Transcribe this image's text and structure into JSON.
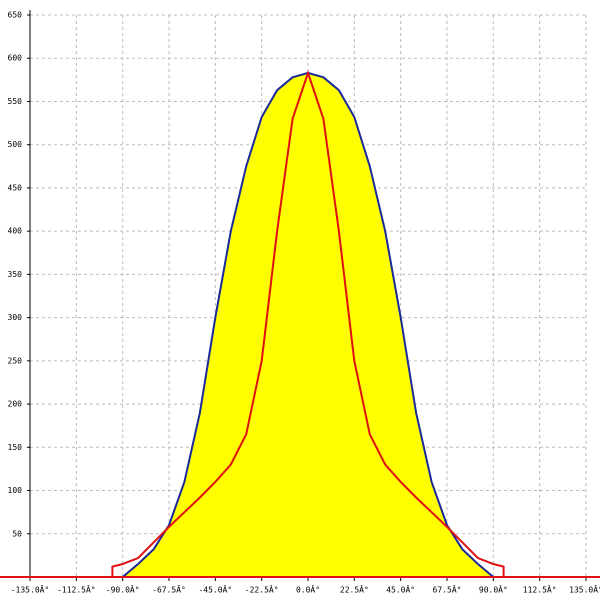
{
  "chart_data": {
    "type": "line",
    "xlim": [
      -135,
      135
    ],
    "ylim": [
      0,
      650
    ],
    "xticks": [
      {
        "value": -135,
        "label": "-135.0Â°"
      },
      {
        "value": -112.5,
        "label": "-112.5Â°"
      },
      {
        "value": -90,
        "label": "-90.0Â°"
      },
      {
        "value": -67.5,
        "label": "-67.5Â°"
      },
      {
        "value": -45,
        "label": "-45.0Â°"
      },
      {
        "value": -22.5,
        "label": "-22.5Â°"
      },
      {
        "value": 0,
        "label": "0.0Â°"
      },
      {
        "value": 22.5,
        "label": "22.5Â°"
      },
      {
        "value": 45,
        "label": "45.0Â°"
      },
      {
        "value": 67.5,
        "label": "67.5Â°"
      },
      {
        "value": 90,
        "label": "90.0Â°"
      },
      {
        "value": 112.5,
        "label": "112.5Â°"
      },
      {
        "value": 135,
        "label": "135.0Â°"
      }
    ],
    "yticks": [
      50,
      100,
      150,
      200,
      250,
      300,
      350,
      400,
      450,
      500,
      550,
      600,
      650
    ],
    "grid": true,
    "series": [
      {
        "color": "#1a2a9a",
        "fill": "#ffff00",
        "x": [
          -90,
          -82.5,
          -75,
          -67.5,
          -60,
          -52.5,
          -45,
          -37.5,
          -30,
          -22.5,
          -15,
          -7.5,
          0,
          7.5,
          15,
          22.5,
          30,
          37.5,
          45,
          52.5,
          60,
          67.5,
          75,
          82.5,
          90
        ],
        "values": [
          0,
          15,
          32,
          60,
          110,
          190,
          300,
          400,
          475,
          532,
          563,
          578,
          583,
          578,
          563,
          532,
          475,
          400,
          300,
          190,
          110,
          60,
          32,
          15,
          0
        ]
      },
      {
        "color": "#e01010",
        "x": [
          -95,
          -95,
          -90,
          -82.5,
          -75,
          -67.5,
          -60,
          -52.5,
          -45,
          -37.5,
          -30,
          -22.5,
          -15,
          -7.5,
          0,
          7.5,
          15,
          22.5,
          30,
          37.5,
          45,
          52.5,
          60,
          67.5,
          75,
          82.5,
          90,
          95,
          95
        ],
        "values": [
          0,
          12,
          15,
          22,
          40,
          58,
          75,
          92,
          110,
          130,
          165,
          250,
          400,
          530,
          583,
          530,
          400,
          250,
          165,
          130,
          110,
          92,
          75,
          58,
          40,
          22,
          15,
          12,
          0
        ]
      }
    ],
    "baseline_color": "#e01010"
  }
}
